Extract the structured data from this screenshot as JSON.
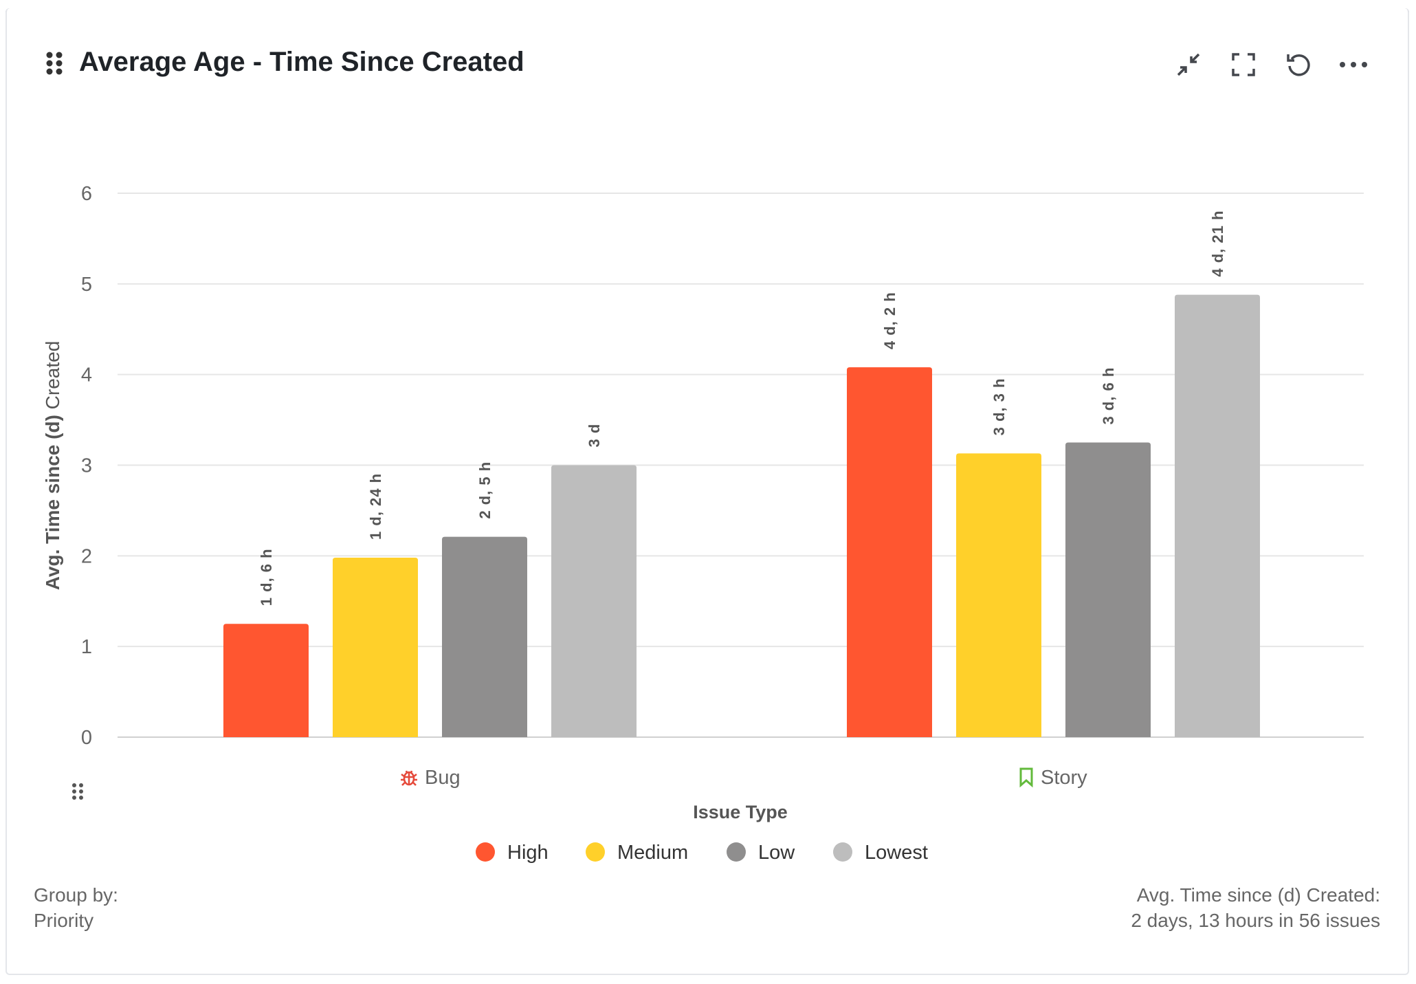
{
  "header": {
    "title": "Average Age - Time Since Created",
    "actions": [
      {
        "name": "collapse-icon",
        "label": "Collapse"
      },
      {
        "name": "fullscreen-icon",
        "label": "Full screen"
      },
      {
        "name": "refresh-icon",
        "label": "Refresh"
      },
      {
        "name": "more-icon",
        "label": "More"
      }
    ]
  },
  "chart_data": {
    "type": "bar",
    "title": "Average Age - Time Since Created",
    "xlabel": "Issue Type",
    "ylabel_bold": "Avg. Time since (d)",
    "ylabel_rest": "Created",
    "ylim": [
      0,
      6
    ],
    "yticks": [
      "0",
      "1",
      "2",
      "3",
      "4",
      "5",
      "6"
    ],
    "grid": true,
    "legend_position": "bottom",
    "categories": [
      {
        "label": "Bug",
        "icon": "bug-icon",
        "icon_color": "#e5493a"
      },
      {
        "label": "Story",
        "icon": "bookmark-icon",
        "icon_color": "#63ba3c"
      }
    ],
    "series": [
      {
        "name": "High",
        "color": "#ff5630",
        "values": [
          1.25,
          4.08
        ],
        "labels": [
          "1 d, 6 h",
          "4 d, 2 h"
        ]
      },
      {
        "name": "Medium",
        "color": "#ffd02a",
        "values": [
          1.98,
          3.13
        ],
        "labels": [
          "1 d, 24 h",
          "3 d, 3 h"
        ]
      },
      {
        "name": "Low",
        "color": "#8f8e8e",
        "values": [
          2.21,
          3.25
        ],
        "labels": [
          "2 d, 5 h",
          "3 d, 6 h"
        ]
      },
      {
        "name": "Lowest",
        "color": "#bdbdbd",
        "values": [
          3.0,
          4.88
        ],
        "labels": [
          "3 d",
          "4 d, 21 h"
        ]
      }
    ]
  },
  "footer": {
    "group_by_label": "Group by:",
    "group_by_value": "Priority",
    "summary_label": "Avg. Time since (d) Created:",
    "summary_value": "2 days, 13 hours in 56 issues"
  }
}
